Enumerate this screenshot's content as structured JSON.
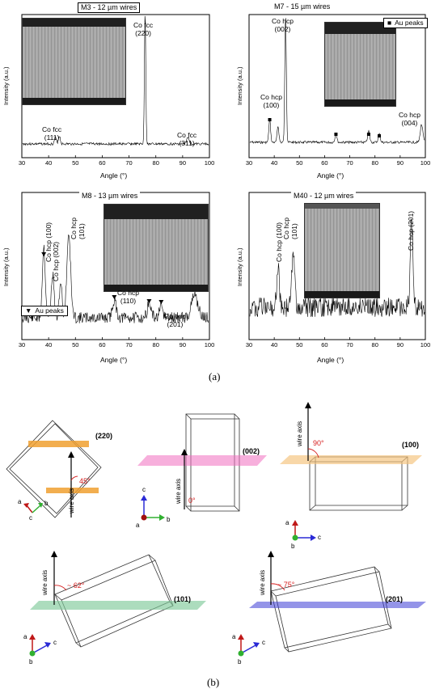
{
  "chart_data": [
    {
      "type": "line",
      "title": "M3 - 12 µm wires",
      "xlabel": "Angle (°)",
      "ylabel": "Intensity (a.u.)",
      "xlim": [
        30,
        100
      ],
      "x_ticks": [
        "30",
        "40",
        "50",
        "60",
        "70",
        "80",
        "90",
        "100"
      ],
      "peaks": [
        {
          "label": "Co fcc\n(111)",
          "x": 44
        },
        {
          "label": "Co fcc\n(220)",
          "x": 76
        },
        {
          "label": "Co fcc\n(311)",
          "x": 92
        }
      ]
    },
    {
      "type": "line",
      "title": "M7 - 15 µm wires",
      "xlabel": "Angle (°)",
      "ylabel": "Intensity (a.u.)",
      "xlim": [
        30,
        100
      ],
      "x_ticks": [
        "30",
        "40",
        "50",
        "60",
        "70",
        "80",
        "90",
        "100"
      ],
      "legend": "Au peaks",
      "peaks": [
        {
          "label": "Co hcp\n(100)",
          "x": 41.5
        },
        {
          "label": "Co hcp\n(002)",
          "x": 44.5
        },
        {
          "label": "Co hcp\n(004)",
          "x": 98.5
        }
      ]
    },
    {
      "type": "line",
      "title": "M8 - 13 µm wires",
      "xlabel": "Angle (°)",
      "ylabel": "Intensity (a.u.)",
      "xlim": [
        30,
        100
      ],
      "x_ticks": [
        "30",
        "40",
        "50",
        "60",
        "70",
        "80",
        "90",
        "100"
      ],
      "legend": "Au peaks",
      "peaks": [
        {
          "label": "Co hcp (100)",
          "x": 41.5
        },
        {
          "label": "Co hcp (002)",
          "x": 44.5
        },
        {
          "label": "Co hcp\n(101)",
          "x": 47.5
        },
        {
          "label": "Co hcp\n(110)",
          "x": 76
        },
        {
          "label": "Co hcp\n(201)",
          "x": 94.5
        }
      ]
    },
    {
      "type": "line",
      "title": "M40 - 12 µm wires",
      "xlabel": "Angle (°)",
      "ylabel": "Intensity (a.u.)",
      "xlim": [
        30,
        100
      ],
      "x_ticks": [
        "30",
        "40",
        "50",
        "60",
        "70",
        "80",
        "90",
        "100"
      ],
      "peaks": [
        {
          "label": "Co hcp (100)",
          "x": 41.5
        },
        {
          "label": "Co hcp\n(101)",
          "x": 47.5
        },
        {
          "label": "Co hcp (201)",
          "x": 94.5
        }
      ]
    }
  ],
  "captions": {
    "a": "(a)",
    "b": "(b)"
  },
  "part_b": {
    "planes": [
      {
        "label": "(220)",
        "angle": "45°",
        "color": "#f0a030"
      },
      {
        "label": "(002)",
        "angle": "0°",
        "color": "#f06ec0"
      },
      {
        "label": "(100)",
        "angle": "90°",
        "color": "#f5c27a"
      },
      {
        "label": "(101)",
        "angle": "~ 62°",
        "color": "#7fc99a"
      },
      {
        "label": "(201)",
        "angle": "~ 75°",
        "color": "#3d3dd6"
      }
    ],
    "wire_axis": "wire axis",
    "axes": {
      "a": "a",
      "b": "b",
      "c": "c"
    }
  }
}
